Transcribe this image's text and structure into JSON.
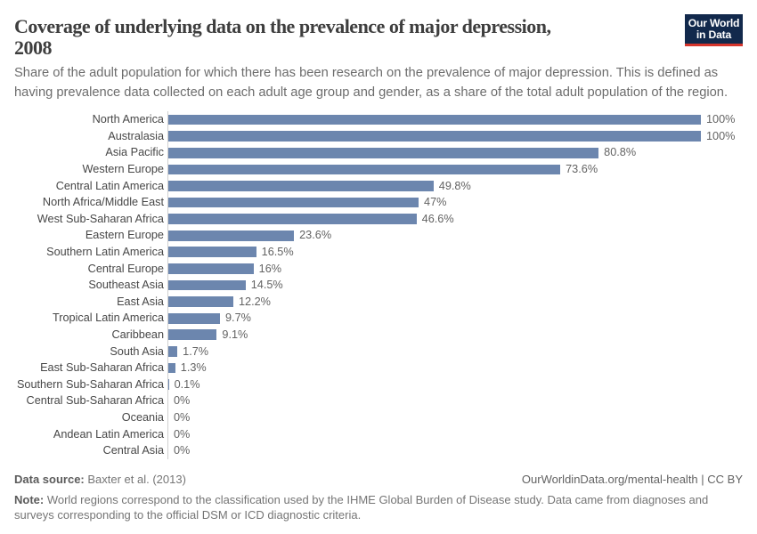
{
  "header": {
    "title": "Coverage of underlying data on the prevalence of major depression, 2008",
    "subtitle": "Share of the adult population for which there has been research on the prevalence of major depression. This is defined as having prevalence data collected on each adult age group and gender, as a share of the total adult population of the region."
  },
  "logo": {
    "line1": "Our World",
    "line2": "in Data",
    "background_color": "#12294c",
    "accent_color": "#d42b21"
  },
  "chart_data": {
    "type": "bar",
    "orientation": "horizontal",
    "title": "Coverage of underlying data on the prevalence of major depression, 2008",
    "xlabel": "",
    "ylabel": "",
    "xlim": [
      0,
      100
    ],
    "grid": false,
    "legend": false,
    "bar_color": "#6c86ae",
    "categories": [
      "North America",
      "Australasia",
      "Asia Pacific",
      "Western Europe",
      "Central Latin America",
      "North Africa/Middle East",
      "West Sub-Saharan Africa",
      "Eastern Europe",
      "Southern Latin America",
      "Central Europe",
      "Southeast Asia",
      "East Asia",
      "Tropical Latin America",
      "Caribbean",
      "South Asia",
      "East Sub-Saharan Africa",
      "Southern Sub-Saharan Africa",
      "Central Sub-Saharan Africa",
      "Oceania",
      "Andean Latin America",
      "Central Asia"
    ],
    "values": [
      100,
      100,
      80.8,
      73.6,
      49.8,
      47,
      46.6,
      23.6,
      16.5,
      16,
      14.5,
      12.2,
      9.7,
      9.1,
      1.7,
      1.3,
      0.1,
      0,
      0,
      0,
      0
    ],
    "value_labels": [
      "100%",
      "100%",
      "80.8%",
      "73.6%",
      "49.8%",
      "47%",
      "46.6%",
      "23.6%",
      "16.5%",
      "16%",
      "14.5%",
      "12.2%",
      "9.7%",
      "9.1%",
      "1.7%",
      "1.3%",
      "0.1%",
      "0%",
      "0%",
      "0%",
      "0%"
    ]
  },
  "footer": {
    "source_label": "Data source:",
    "source_value": " Baxter et al. (2013)",
    "credit": "OurWorldinData.org/mental-health | CC BY",
    "note_label": "Note:",
    "note_text": " World regions correspond to the classification used by the IHME Global Burden of Disease study. Data came from diagnoses and surveys corresponding to the official DSM or ICD diagnostic criteria."
  }
}
